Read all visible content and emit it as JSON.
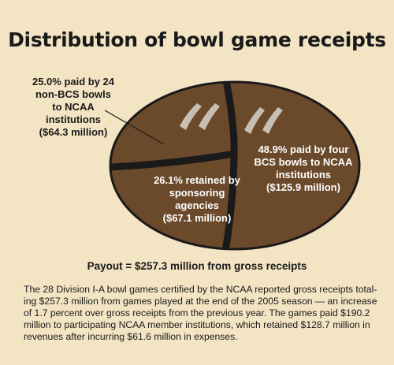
{
  "chart_data": {
    "type": "pie",
    "title": "Distribution of bowl game receipts",
    "slices": [
      {
        "label_lines": [
          "25.0% paid by 24",
          "non-BCS bowls",
          "to NCAA",
          "institutions",
          "($64.3 million)"
        ],
        "percent": 25.0,
        "value_millions": 64.3
      },
      {
        "label_lines": [
          "48.9% paid by four",
          "BCS bowls to NCAA",
          "institutions",
          "($125.9 million)"
        ],
        "percent": 48.9,
        "value_millions": 125.9
      },
      {
        "label_lines": [
          "26.1% retained by",
          "sponsoring",
          "agencies",
          "($67.1 million)"
        ],
        "percent": 26.1,
        "value_millions": 67.1
      }
    ],
    "colors": {
      "ball": "#6b4a2b",
      "seam": "#1a1a1a",
      "laces": "#c8beb2",
      "background": "#f3e4c4"
    }
  },
  "payout": "Payout = $257.3 million from gross receipts",
  "caption_lines": [
    "The 28 Division I-A bowl games certified by the NCAA reported gross receipts total-",
    "ing $257.3 million from games played at the end of the 2005 season — an increase",
    "of 1.7 percent over gross receipts from the previous year. The games paid $190.2",
    "million to participating NCAA member institutions, which retained $128.7 million in",
    "revenues after incurring $61.6 million in expenses."
  ]
}
